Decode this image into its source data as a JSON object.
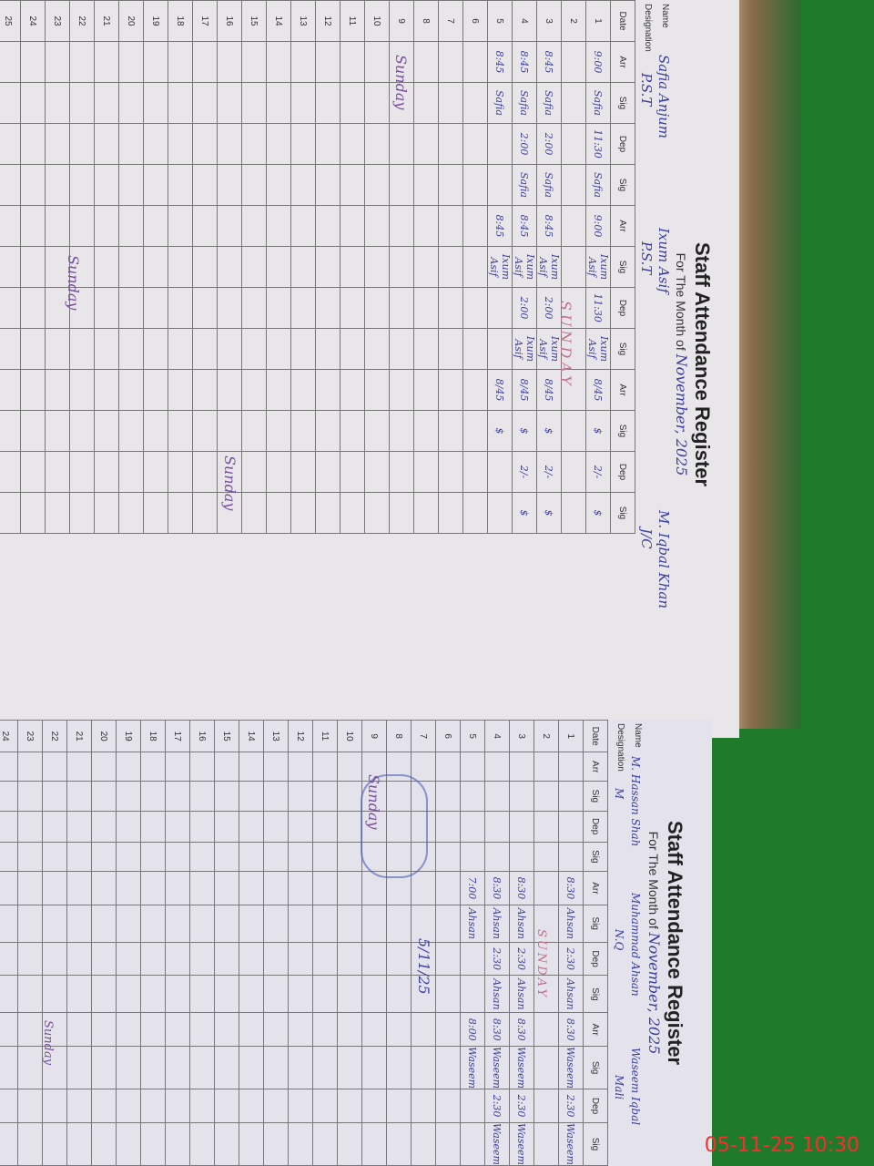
{
  "left_page": {
    "title": "Staff Attendance Register",
    "month_label": "For The Month of",
    "month_value": "November, 2025",
    "name_label": "Name",
    "designation_label": "Designation",
    "staff": [
      {
        "name": "Safia Anjum",
        "designation": "P.S.T"
      },
      {
        "name": "Ixum Asif",
        "designation": "P.S.T"
      },
      {
        "name": "M. Iqbal Khan",
        "designation": "J/C"
      }
    ],
    "columns": [
      "Date",
      "Arr",
      "Sig",
      "Dep",
      "Sig",
      "Arr",
      "Sig",
      "Dep",
      "Sig",
      "Arr",
      "Sig",
      "Dep",
      "Sig"
    ],
    "rows": [
      [
        "1",
        "9:00",
        "Safia",
        "11:30",
        "Safia",
        "9:00",
        "Ixum Asif",
        "11:30",
        "Ixum Asif",
        "8/45",
        "$",
        "2/-",
        "$"
      ],
      [
        "2",
        "",
        "",
        "",
        "",
        "",
        "",
        "",
        "",
        "",
        "",
        "",
        ""
      ],
      [
        "3",
        "8:45",
        "Safia",
        "2:00",
        "Safia",
        "8:45",
        "Ixum Asif",
        "2:00",
        "Ixum Asif",
        "8/45",
        "$",
        "2/-",
        "$"
      ],
      [
        "4",
        "8:45",
        "Safia",
        "2:00",
        "Safia",
        "8:45",
        "Ixum Asif",
        "2:00",
        "Ixum Asif",
        "8/45",
        "$",
        "2/-",
        "$"
      ],
      [
        "5",
        "8:45",
        "Safia",
        "",
        "",
        "8:45",
        "Ixum Asif",
        "",
        "",
        "8/45",
        "$",
        "",
        ""
      ]
    ],
    "notes": {
      "row2": "SUNDAY",
      "row9": "Sunday",
      "row16": "Sunday",
      "row23": "Sunday"
    }
  },
  "right_page": {
    "title": "Staff Attendance Register",
    "month_label": "For The Month of",
    "month_value": "November, 2025",
    "name_label": "Name",
    "designation_label": "Designation",
    "staff": [
      {
        "name": "M. Hassan Shah",
        "designation": "M"
      },
      {
        "name": "Muhammad Ahsan",
        "designation": "N.Q"
      },
      {
        "name": "Waseem Iqbal",
        "designation": "Mali"
      }
    ],
    "columns": [
      "Date",
      "Arr",
      "Sig",
      "Dep",
      "Sig",
      "Arr",
      "Sig",
      "Dep",
      "Sig",
      "Arr",
      "Sig",
      "Dep",
      "Sig"
    ],
    "rows": [
      [
        "1",
        "",
        "",
        "",
        "",
        "8:30",
        "Ahsan",
        "2:30",
        "Ahsan",
        "8:30",
        "Waseem",
        "2:30",
        "Waseem"
      ],
      [
        "2",
        "",
        "",
        "",
        "",
        "",
        "",
        "",
        "",
        "",
        "",
        "",
        ""
      ],
      [
        "3",
        "",
        "",
        "",
        "",
        "8:30",
        "Ahsan",
        "2:30",
        "Ahsan",
        "8:30",
        "Waseem",
        "2:30",
        "Waseem"
      ],
      [
        "4",
        "",
        "",
        "",
        "",
        "8:30",
        "Ahsan",
        "2:30",
        "Ahsan",
        "8:30",
        "Waseem",
        "2:30",
        "Waseem"
      ],
      [
        "5",
        "",
        "",
        "",
        "",
        "7:00",
        "Ahsan",
        "",
        "",
        "8:00",
        "Waseem",
        "",
        ""
      ]
    ],
    "notes": {
      "row2": "SUNDAY",
      "row9": "Sunday",
      "row23": "Sunday",
      "row7_date": "5/11/25"
    }
  },
  "timestamp": "05-11-25  10:30"
}
